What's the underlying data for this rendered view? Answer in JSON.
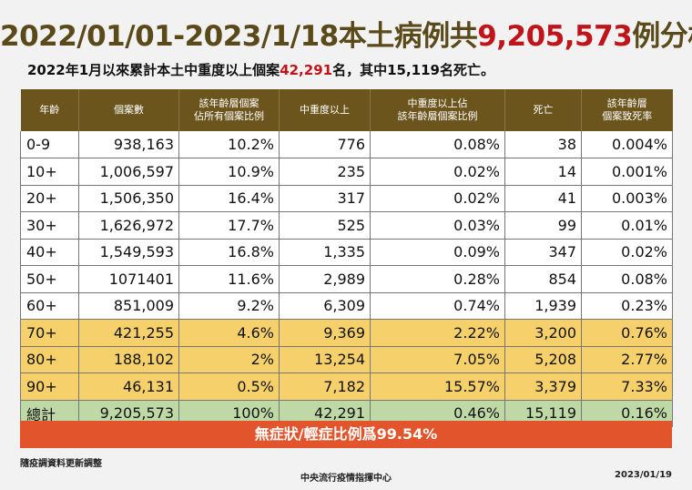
{
  "title": {
    "prefix": "2022/01/01-2023/1/18本土病例共",
    "highlight": "9,205,573",
    "suffix": "例分析"
  },
  "subtitle": {
    "prefix": "2022年1月以來累計本土中重度以上個案",
    "highlight": "42,291",
    "suffix": "名，其中15,119名死亡。"
  },
  "table": {
    "headers": [
      "年齡",
      "個案數",
      "該年齡層個案\n佔所有個案比例",
      "中重度以上",
      "中重度以上佔\n該年齡層個案比例",
      "死亡",
      "該年齡層\n個案致死率"
    ],
    "rows": [
      {
        "cells": [
          "0-9",
          "938,163",
          "10.2%",
          "776",
          "0.08%",
          "38",
          "0.004%"
        ]
      },
      {
        "cells": [
          "10+",
          "1,006,597",
          "10.9%",
          "235",
          "0.02%",
          "14",
          "0.001%"
        ]
      },
      {
        "cells": [
          "20+",
          "1,506,350",
          "16.4%",
          "317",
          "0.02%",
          "41",
          "0.003%"
        ]
      },
      {
        "cells": [
          "30+",
          "1,626,972",
          "17.7%",
          "525",
          "0.03%",
          "99",
          "0.01%"
        ]
      },
      {
        "cells": [
          "40+",
          "1,549,593",
          "16.8%",
          "1,335",
          "0.09%",
          "347",
          "0.02%"
        ]
      },
      {
        "cells": [
          "50+",
          "1071401",
          "11.6%",
          "2,989",
          "0.28%",
          "854",
          "0.08%"
        ]
      },
      {
        "cells": [
          "60+",
          "851,009",
          "9.2%",
          "6,309",
          "0.74%",
          "1,939",
          "0.23%"
        ]
      },
      {
        "cells": [
          "70+",
          "421,255",
          "4.6%",
          "9,369",
          "2.22%",
          "3,200",
          "0.76%"
        ]
      },
      {
        "cells": [
          "80+",
          "188,102",
          "2%",
          "13,254",
          "7.05%",
          "5,208",
          "2.77%"
        ]
      },
      {
        "cells": [
          "90+",
          "46,131",
          "0.5%",
          "7,182",
          "15.57%",
          "3,379",
          "7.33%"
        ]
      },
      {
        "cells": [
          "總計",
          "9,205,573",
          "100%",
          "42,291",
          "0.46%",
          "15,119",
          "0.16%"
        ]
      }
    ],
    "row_colors": {
      "white": "#ffffff",
      "yellow": "#f6d06a",
      "green": "#bfd9a6",
      "header": "#6b551c"
    }
  },
  "banner": {
    "text": "無症狀/輕症比例爲99.54%",
    "color": "#e2542b"
  },
  "footnote": "隨疫調資料更新調整",
  "organization": "中央流行疫情指揮中心",
  "date": "2023/01/19"
}
